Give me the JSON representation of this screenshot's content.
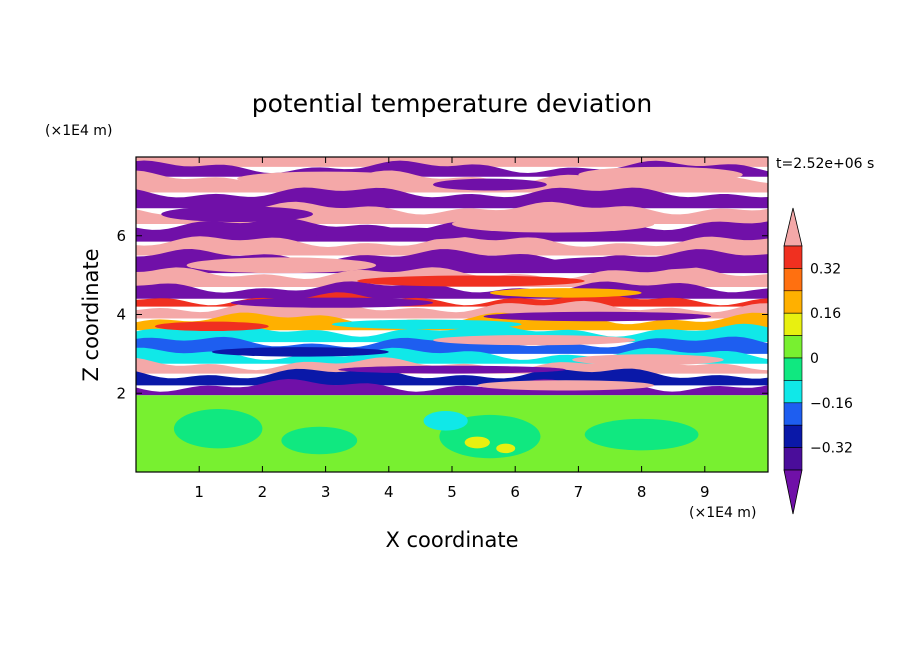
{
  "chart_data": {
    "type": "heatmap",
    "title": "potential temperature deviation",
    "time_label": "t=2.52e+06 s",
    "xlabel": "X coordinate",
    "ylabel": "Z coordinate",
    "x_unit": "(×1E4 m)",
    "y_unit": "(×1E4 m)",
    "xlim": [
      0,
      10
    ],
    "ylim": [
      0,
      8
    ],
    "x_ticks": [
      1,
      2,
      3,
      4,
      5,
      6,
      7,
      8,
      9
    ],
    "y_ticks": [
      2,
      4,
      6
    ],
    "colorbar": {
      "labels": [
        {
          "value": 0.32,
          "text": "0.32"
        },
        {
          "value": 0.16,
          "text": "0.16"
        },
        {
          "value": 0,
          "text": "0"
        },
        {
          "value": -0.16,
          "text": "−0.16"
        },
        {
          "value": -0.32,
          "text": "−0.32"
        }
      ],
      "levels": [
        {
          "lo": null,
          "hi": -0.4,
          "color": "#7010a8"
        },
        {
          "lo": -0.4,
          "hi": -0.32,
          "color": "#4a0d9a"
        },
        {
          "lo": -0.32,
          "hi": -0.24,
          "color": "#0a18a8"
        },
        {
          "lo": -0.24,
          "hi": -0.16,
          "color": "#1e5ef0"
        },
        {
          "lo": -0.16,
          "hi": -0.08,
          "color": "#10e8e8"
        },
        {
          "lo": -0.08,
          "hi": 0,
          "color": "#10e880"
        },
        {
          "lo": 0,
          "hi": 0.08,
          "color": "#78f030"
        },
        {
          "lo": 0.08,
          "hi": 0.16,
          "color": "#e8f010"
        },
        {
          "lo": 0.16,
          "hi": 0.24,
          "color": "#ffb000"
        },
        {
          "lo": 0.24,
          "hi": 0.32,
          "color": "#ff7010"
        },
        {
          "lo": 0.32,
          "hi": 0.4,
          "color": "#f03020"
        },
        {
          "lo": 0.4,
          "hi": null,
          "color": "#f4a8a8"
        }
      ]
    },
    "bands": [
      {
        "z0": 7.75,
        "z1": 8.0,
        "color": "#f4a8a8"
      },
      {
        "z0": 7.5,
        "z1": 7.75,
        "color": "#7010a8"
      },
      {
        "z0": 7.1,
        "z1": 7.5,
        "color": "#f4a8a8"
      },
      {
        "z0": 6.7,
        "z1": 7.1,
        "color": "#7010a8"
      },
      {
        "z0": 6.3,
        "z1": 6.7,
        "color": "#f4a8a8"
      },
      {
        "z0": 5.85,
        "z1": 6.3,
        "color": "#7010a8"
      },
      {
        "z0": 5.5,
        "z1": 5.85,
        "color": "#f4a8a8"
      },
      {
        "z0": 5.05,
        "z1": 5.5,
        "color": "#7010a8"
      },
      {
        "z0": 4.7,
        "z1": 5.05,
        "color": "#f4a8a8"
      },
      {
        "z0": 4.4,
        "z1": 4.7,
        "color": "#7010a8"
      },
      {
        "z0": 4.2,
        "z1": 4.4,
        "color": "#f03020"
      },
      {
        "z0": 3.9,
        "z1": 4.2,
        "color": "#f4a8a8"
      },
      {
        "z0": 3.6,
        "z1": 3.9,
        "color": "#ffb000"
      },
      {
        "z0": 3.3,
        "z1": 3.6,
        "color": "#10e8e8"
      },
      {
        "z0": 3.0,
        "z1": 3.3,
        "color": "#1e5ef0"
      },
      {
        "z0": 2.75,
        "z1": 3.0,
        "color": "#10e8e8"
      },
      {
        "z0": 2.5,
        "z1": 2.75,
        "color": "#f4a8a8"
      },
      {
        "z0": 2.2,
        "z1": 2.5,
        "color": "#0a18a8"
      },
      {
        "z0": 1.95,
        "z1": 2.2,
        "color": "#7010a8"
      },
      {
        "z0": 0,
        "z1": 1.95,
        "color": "#78f030"
      }
    ],
    "features": [
      {
        "x": 3.0,
        "z": 7.45,
        "rx": 1.4,
        "rz": 0.18,
        "color": "#f4a8a8"
      },
      {
        "x": 8.3,
        "z": 7.55,
        "rx": 1.3,
        "rz": 0.2,
        "color": "#f4a8a8"
      },
      {
        "x": 5.6,
        "z": 7.3,
        "rx": 0.9,
        "rz": 0.15,
        "color": "#7010a8"
      },
      {
        "x": 1.6,
        "z": 6.55,
        "rx": 1.2,
        "rz": 0.2,
        "color": "#7010a8"
      },
      {
        "x": 6.6,
        "z": 6.3,
        "rx": 1.6,
        "rz": 0.22,
        "color": "#f4a8a8"
      },
      {
        "x": 4.1,
        "z": 6.05,
        "rx": 1.3,
        "rz": 0.16,
        "color": "#7010a8"
      },
      {
        "x": 2.3,
        "z": 5.25,
        "rx": 1.5,
        "rz": 0.2,
        "color": "#f4a8a8"
      },
      {
        "x": 7.8,
        "z": 5.3,
        "rx": 1.4,
        "rz": 0.17,
        "color": "#7010a8"
      },
      {
        "x": 5.3,
        "z": 4.85,
        "rx": 1.8,
        "rz": 0.14,
        "color": "#f03020"
      },
      {
        "x": 6.8,
        "z": 4.55,
        "rx": 1.2,
        "rz": 0.12,
        "color": "#ffb000"
      },
      {
        "x": 3.1,
        "z": 4.3,
        "rx": 1.6,
        "rz": 0.13,
        "color": "#7010a8"
      },
      {
        "x": 7.3,
        "z": 3.95,
        "rx": 1.8,
        "rz": 0.12,
        "color": "#7010a8"
      },
      {
        "x": 4.6,
        "z": 3.75,
        "rx": 1.5,
        "rz": 0.12,
        "color": "#10e8e8"
      },
      {
        "x": 1.2,
        "z": 3.7,
        "rx": 0.9,
        "rz": 0.12,
        "color": "#f03020"
      },
      {
        "x": 6.3,
        "z": 3.35,
        "rx": 1.6,
        "rz": 0.13,
        "color": "#f4a8a8"
      },
      {
        "x": 2.6,
        "z": 3.05,
        "rx": 1.4,
        "rz": 0.12,
        "color": "#0a18a8"
      },
      {
        "x": 8.1,
        "z": 2.85,
        "rx": 1.2,
        "rz": 0.14,
        "color": "#f4a8a8"
      },
      {
        "x": 5.0,
        "z": 2.6,
        "rx": 1.8,
        "rz": 0.1,
        "color": "#7010a8"
      },
      {
        "x": 6.8,
        "z": 2.2,
        "rx": 1.4,
        "rz": 0.13,
        "color": "#f4a8a8"
      },
      {
        "x": 1.3,
        "z": 1.1,
        "rx": 0.7,
        "rz": 0.5,
        "color": "#10e880"
      },
      {
        "x": 2.9,
        "z": 0.8,
        "rx": 0.6,
        "rz": 0.35,
        "color": "#10e880"
      },
      {
        "x": 5.6,
        "z": 0.9,
        "rx": 0.8,
        "rz": 0.55,
        "color": "#10e880"
      },
      {
        "x": 8.0,
        "z": 0.95,
        "rx": 0.9,
        "rz": 0.4,
        "color": "#10e880"
      },
      {
        "x": 5.4,
        "z": 0.75,
        "rx": 0.2,
        "rz": 0.15,
        "color": "#e8f010"
      },
      {
        "x": 5.85,
        "z": 0.6,
        "rx": 0.15,
        "rz": 0.12,
        "color": "#e8f010"
      },
      {
        "x": 4.9,
        "z": 1.3,
        "rx": 0.35,
        "rz": 0.25,
        "color": "#10e8e8"
      }
    ]
  }
}
